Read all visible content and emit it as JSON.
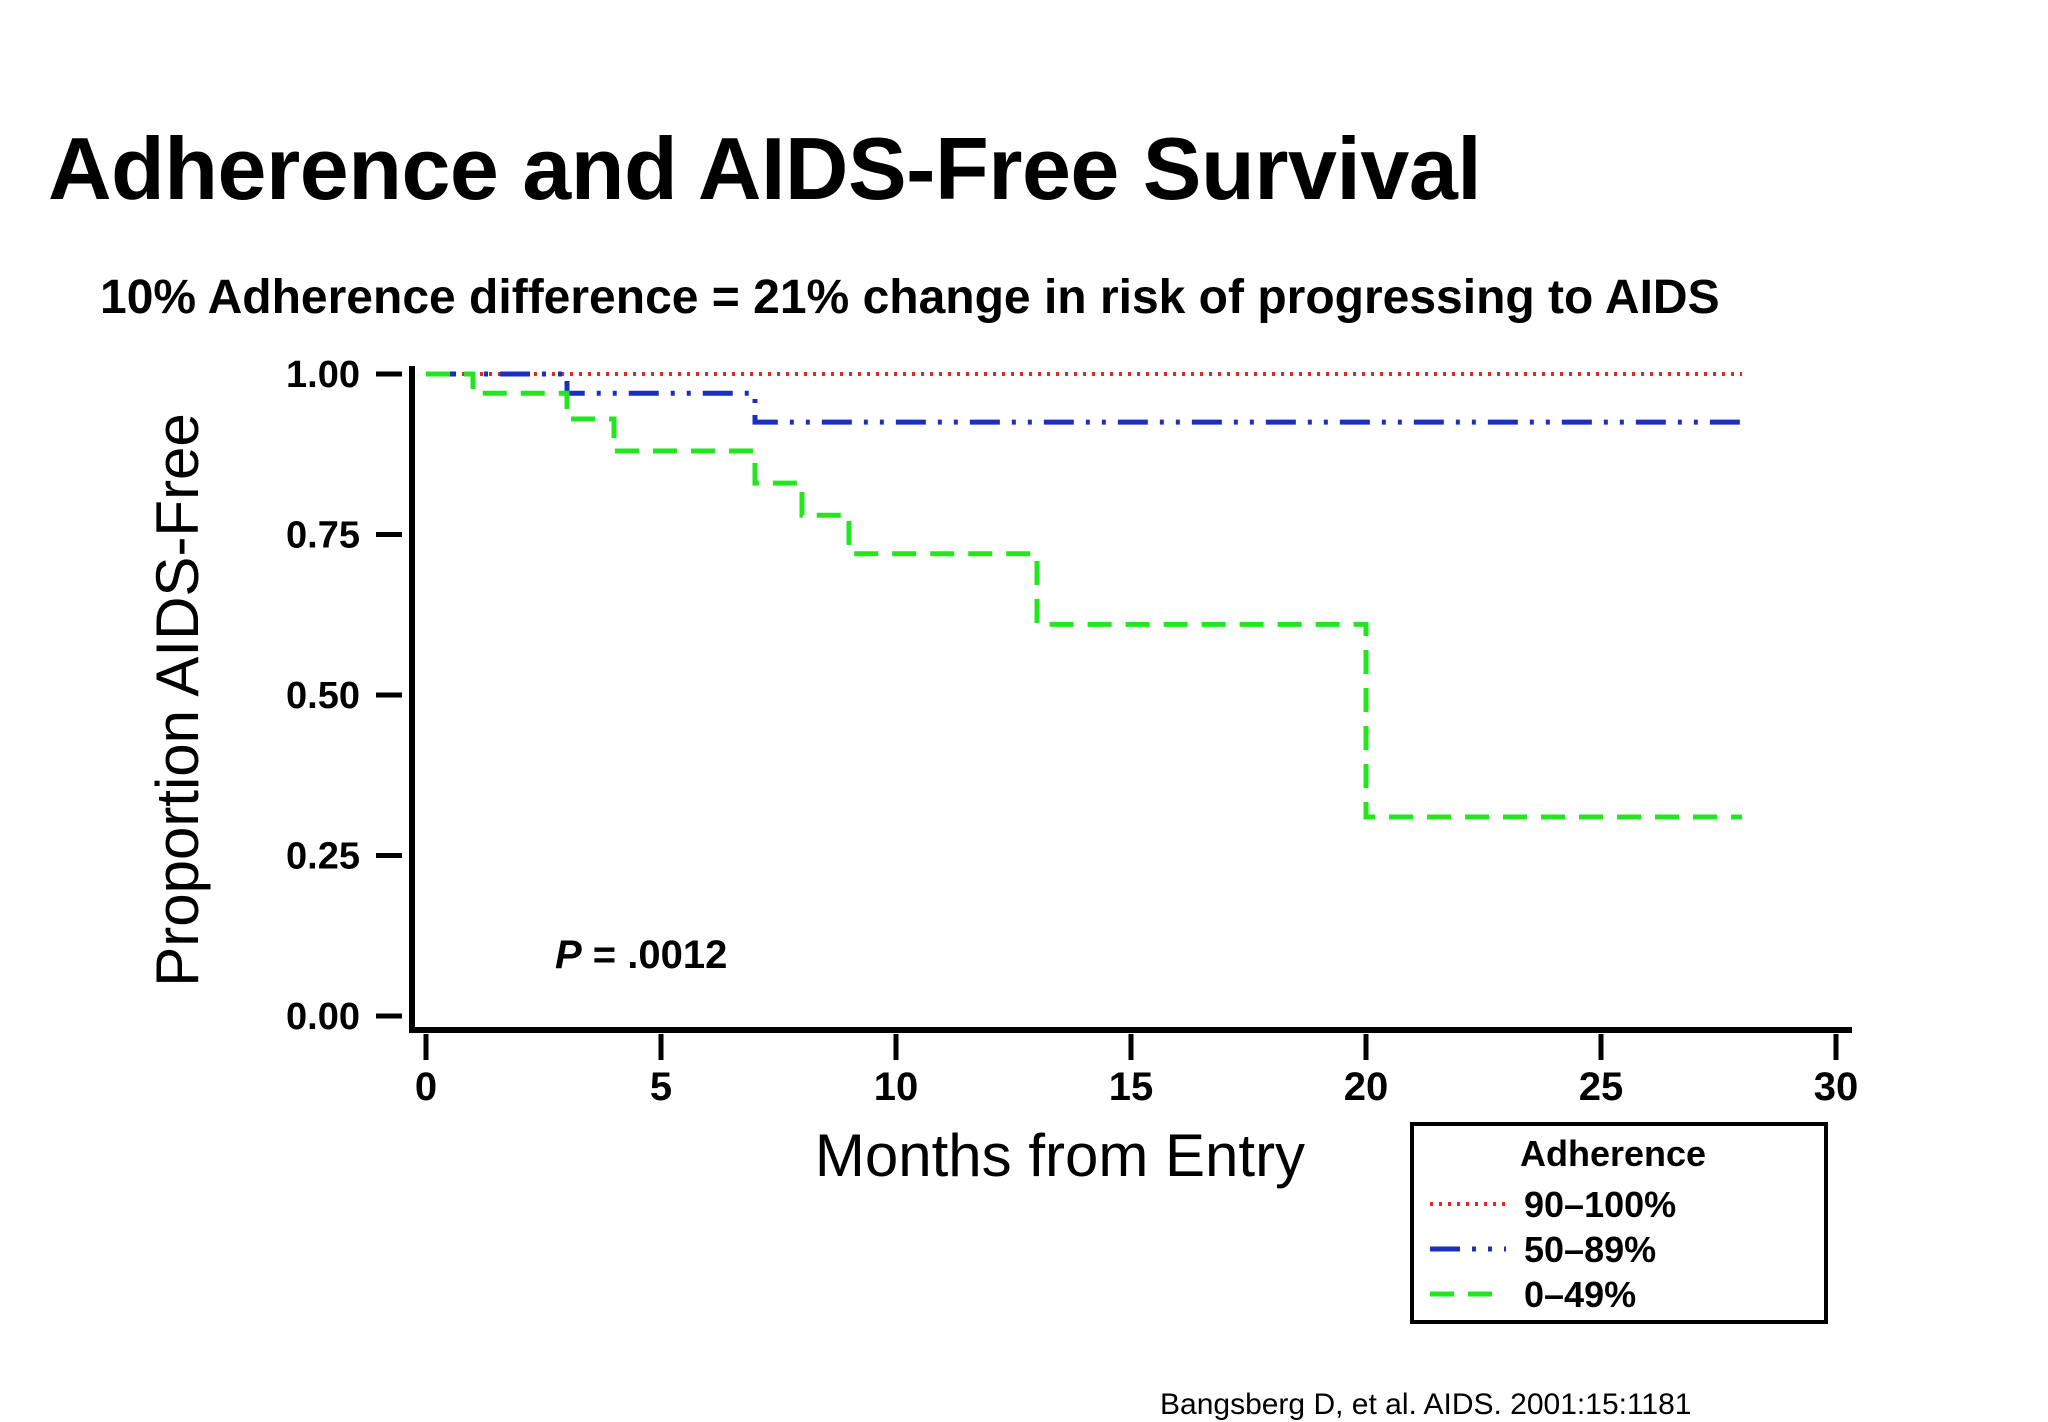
{
  "slide": {
    "title": "Adherence and AIDS-Free Survival",
    "subtitle": "10% Adherence difference = 21% change in risk of progressing to AIDS",
    "citation": "Bangsberg D, et al. AIDS. 2001:15:1181"
  },
  "chart_data": {
    "type": "line",
    "step": true,
    "title": "",
    "xlabel": "Months from Entry",
    "ylabel": "Proportion AIDS-Free",
    "xlim": [
      0,
      30
    ],
    "ylim": [
      0,
      1
    ],
    "x_ticks": [
      0,
      5,
      10,
      15,
      20,
      25,
      30
    ],
    "x_tick_labels": [
      "0",
      "5",
      "10",
      "15",
      "20",
      "25",
      "30"
    ],
    "y_ticks": [
      0,
      0.25,
      0.5,
      0.75,
      1.0
    ],
    "y_tick_labels": [
      "0.00",
      "0.25",
      "0.50",
      "0.75",
      "1.00"
    ],
    "grid": false,
    "annotation": {
      "italic": "P",
      "text": " = .0012"
    },
    "legend": {
      "title": "Adherence",
      "position": "bottom-right"
    },
    "series": [
      {
        "name": "90–100%",
        "color": "#e8251e",
        "style": "dotted",
        "x": [
          0,
          28
        ],
        "y": [
          1.0,
          1.0
        ]
      },
      {
        "name": "50–89%",
        "color": "#1a2fc0",
        "style": "dash-dot",
        "x": [
          0,
          3,
          7,
          28
        ],
        "y": [
          1.0,
          0.97,
          0.925,
          0.925
        ]
      },
      {
        "name": "0–49%",
        "color": "#22e61e",
        "style": "dashed",
        "x": [
          0,
          1,
          3,
          4,
          7,
          8,
          9,
          13,
          20,
          28
        ],
        "y": [
          1.0,
          0.97,
          0.93,
          0.88,
          0.83,
          0.78,
          0.72,
          0.61,
          0.31,
          0.31
        ]
      }
    ]
  }
}
